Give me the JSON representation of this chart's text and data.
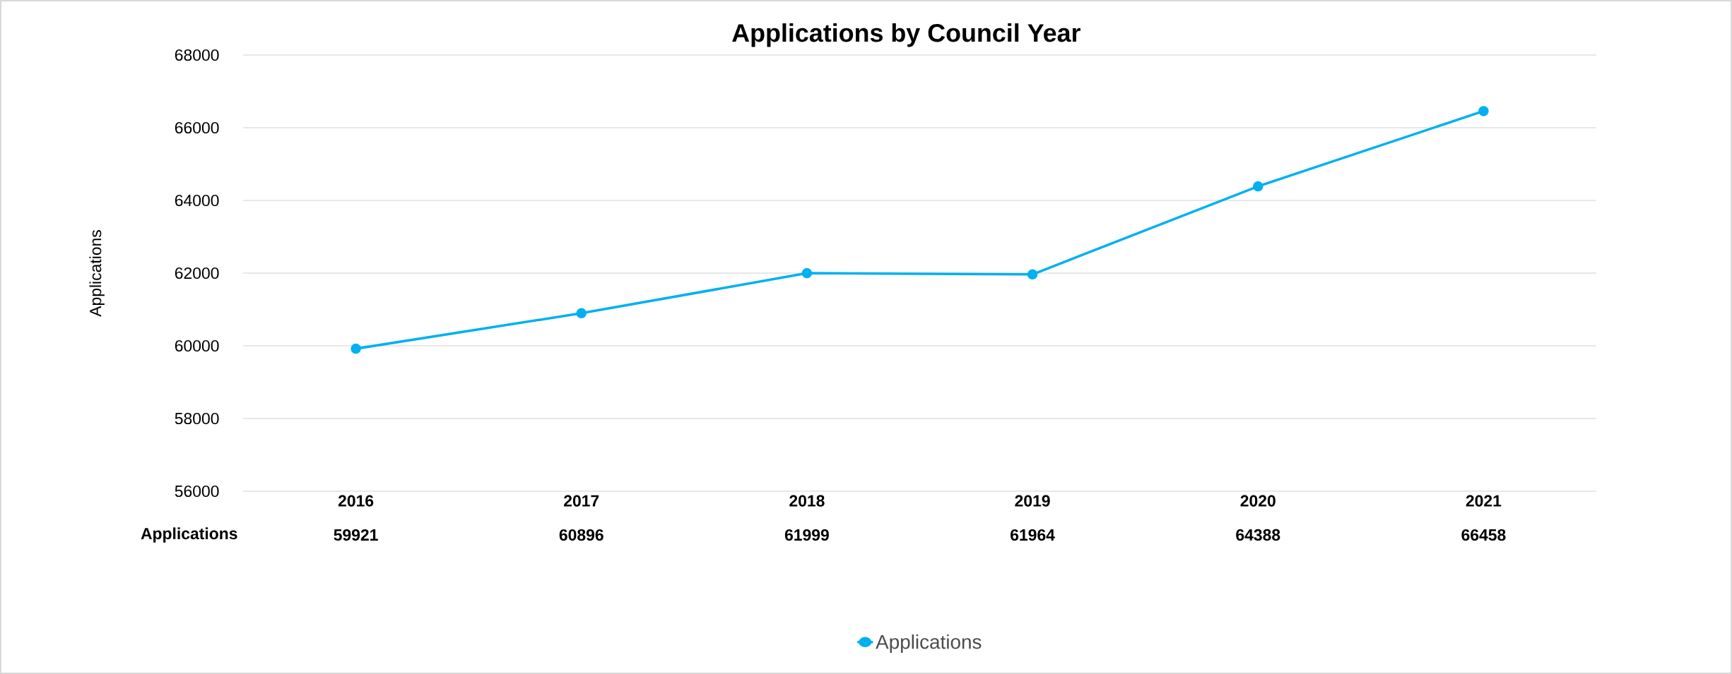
{
  "chart_data": {
    "type": "line",
    "title": "Applications by Council Year",
    "ylabel": "Applications",
    "categories": [
      "2016",
      "2017",
      "2018",
      "2019",
      "2020",
      "2021"
    ],
    "series": [
      {
        "name": "Applications",
        "color": "#00b0f0",
        "values": [
          59921,
          60896,
          61999,
          61964,
          64388,
          66458
        ]
      }
    ],
    "ylim": [
      56000,
      68000
    ],
    "yticks": [
      56000,
      58000,
      60000,
      62000,
      64000,
      66000,
      68000
    ],
    "grid": "y",
    "legend": "bottom",
    "marker": "circle",
    "line_style": "solid",
    "data_labels": true
  }
}
